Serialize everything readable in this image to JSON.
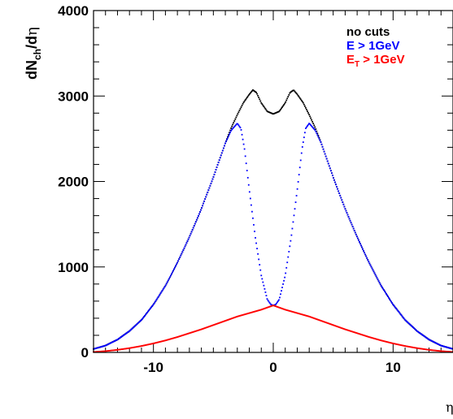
{
  "chart_data": {
    "type": "scatter",
    "title": "",
    "ylabel": {
      "main": "dN",
      "sub": "ch",
      "tail": "/d",
      "symbol": "η"
    },
    "xlabel": "η",
    "xlim": [
      -15,
      15
    ],
    "ylim": [
      0,
      4000
    ],
    "x_ticks": [
      -10,
      0,
      10
    ],
    "y_ticks": [
      0,
      1000,
      2000,
      3000,
      4000
    ],
    "x_tick_labels": [
      "-10",
      "0",
      "10"
    ],
    "y_tick_labels": [
      "0",
      "1000",
      "2000",
      "3000",
      "4000"
    ],
    "legend_position": "top-right",
    "legend": [
      {
        "label": "no cuts",
        "color": "#000000"
      },
      {
        "label": "E > 1GeV",
        "color": "#0000ff"
      },
      {
        "main": "E",
        "sub": "T",
        "tail": " > 1GeV",
        "color": "#ff0000"
      }
    ],
    "series": [
      {
        "color": "#000000",
        "x": [
          -15,
          -14,
          -13,
          -12,
          -11,
          -10,
          -9,
          -8,
          -7,
          -6,
          -5,
          -4,
          -3.5,
          -3,
          -2.5,
          -2,
          -1.7,
          -1.4,
          -1,
          -0.5,
          0,
          0.5,
          1,
          1.4,
          1.7,
          2,
          2.5,
          3,
          3.5,
          4,
          5,
          6,
          7,
          8,
          9,
          10,
          11,
          12,
          13,
          14,
          15
        ],
        "y": [
          40,
          80,
          150,
          250,
          380,
          560,
          780,
          1050,
          1350,
          1680,
          2050,
          2450,
          2630,
          2780,
          2920,
          3020,
          3070,
          3040,
          2920,
          2820,
          2790,
          2820,
          2920,
          3040,
          3070,
          3020,
          2920,
          2780,
          2630,
          2450,
          2050,
          1680,
          1350,
          1050,
          780,
          560,
          380,
          250,
          150,
          80,
          40
        ]
      },
      {
        "color": "#0000ff",
        "x": [
          -15,
          -14,
          -13,
          -12,
          -11,
          -10,
          -9,
          -8,
          -7,
          -6,
          -5,
          -4,
          -3.5,
          -3,
          -2.7,
          -2.4,
          -2,
          -1.5,
          -1,
          -0.5,
          -0.2,
          0,
          0.2,
          0.5,
          1,
          1.5,
          2,
          2.4,
          2.7,
          3,
          3.5,
          4,
          5,
          6,
          7,
          8,
          9,
          10,
          11,
          12,
          13,
          14,
          15
        ],
        "y": [
          40,
          80,
          150,
          250,
          380,
          560,
          780,
          1050,
          1350,
          1680,
          2050,
          2450,
          2600,
          2680,
          2620,
          2380,
          1900,
          1350,
          900,
          620,
          560,
          550,
          560,
          620,
          900,
          1350,
          1900,
          2380,
          2620,
          2680,
          2600,
          2450,
          2050,
          1680,
          1350,
          1050,
          780,
          560,
          380,
          250,
          150,
          80,
          40
        ]
      },
      {
        "color": "#ff0000",
        "x": [
          -15,
          -14,
          -13,
          -12,
          -11,
          -10,
          -9,
          -8,
          -7,
          -6,
          -5,
          -4,
          -3,
          -2,
          -1,
          0,
          1,
          2,
          3,
          4,
          5,
          6,
          7,
          8,
          9,
          10,
          11,
          12,
          13,
          14,
          15
        ],
        "y": [
          5,
          15,
          30,
          50,
          75,
          105,
          140,
          180,
          225,
          270,
          320,
          370,
          420,
          460,
          500,
          550,
          500,
          460,
          420,
          370,
          320,
          270,
          225,
          180,
          140,
          105,
          75,
          50,
          30,
          15,
          5
        ]
      }
    ]
  }
}
